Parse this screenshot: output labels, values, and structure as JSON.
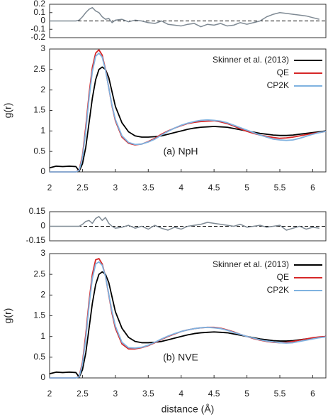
{
  "chart_data": [
    {
      "type": "line",
      "x": [
        2,
        2.1,
        2.2,
        2.3,
        2.4,
        2.45,
        2.5,
        2.55,
        2.6,
        2.65,
        2.7,
        2.75,
        2.8,
        2.85,
        2.9,
        2.95,
        3.0,
        3.1,
        3.2,
        3.3,
        3.4,
        3.5,
        3.6,
        3.7,
        3.8,
        3.9,
        4.0,
        4.1,
        4.2,
        4.3,
        4.4,
        4.5,
        4.6,
        4.7,
        4.8,
        4.9,
        5.0,
        5.1,
        5.2,
        5.3,
        5.4,
        5.5,
        5.6,
        5.7,
        5.8,
        5.9,
        6.0,
        6.1,
        6.2
      ],
      "series": [
        {
          "color": "#7f8a94",
          "values": [
            0,
            0,
            0,
            0,
            0,
            0.01,
            0.05,
            0.1,
            0.14,
            0.16,
            0.12,
            0.1,
            0.05,
            0.02,
            0.03,
            -0.02,
            0.01,
            0.02,
            -0.01,
            0.01,
            0.0,
            -0.02,
            -0.03,
            0.0,
            -0.04,
            -0.05,
            -0.06,
            -0.04,
            -0.03,
            -0.07,
            -0.04,
            -0.05,
            -0.03,
            -0.06,
            -0.05,
            -0.02,
            -0.04,
            -0.02,
            0.0,
            0.05,
            0.08,
            0.1,
            0.09,
            0.08,
            0.07,
            0.06,
            0.04,
            0.02,
            null
          ]
        }
      ],
      "xlim": [
        2,
        6.2
      ],
      "ylim": [
        -0.2,
        0.2
      ],
      "yticks": [
        0.2,
        0.1,
        0,
        -0.1,
        -0.2
      ],
      "reference_line": 0
    },
    {
      "type": "line",
      "x": [
        2,
        2.1,
        2.2,
        2.3,
        2.4,
        2.45,
        2.5,
        2.55,
        2.6,
        2.65,
        2.7,
        2.75,
        2.8,
        2.85,
        2.9,
        2.95,
        3.0,
        3.1,
        3.2,
        3.3,
        3.4,
        3.5,
        3.6,
        3.7,
        3.8,
        3.9,
        4.0,
        4.1,
        4.2,
        4.3,
        4.4,
        4.5,
        4.6,
        4.7,
        4.8,
        4.9,
        5.0,
        5.1,
        5.2,
        5.3,
        5.4,
        5.5,
        5.6,
        5.7,
        5.8,
        5.9,
        6.0,
        6.1,
        6.2
      ],
      "series": [
        {
          "name": "Skinner et al. (2013)",
          "color": "#000000",
          "values": [
            0.1,
            0.14,
            0.13,
            0.14,
            0.13,
            0.02,
            0.2,
            0.6,
            1.2,
            1.8,
            2.25,
            2.5,
            2.56,
            2.5,
            2.3,
            1.95,
            1.6,
            1.2,
            0.98,
            0.88,
            0.85,
            0.85,
            0.86,
            0.88,
            0.92,
            0.96,
            1.0,
            1.04,
            1.07,
            1.09,
            1.1,
            1.11,
            1.1,
            1.09,
            1.06,
            1.03,
            1.0,
            0.97,
            0.94,
            0.92,
            0.9,
            0.89,
            0.89,
            0.9,
            0.92,
            0.94,
            0.96,
            0.98,
            1.0
          ]
        },
        {
          "name": "QE",
          "color": "#d62728",
          "values": [
            0,
            0,
            0,
            0,
            0,
            0.05,
            0.4,
            1.1,
            1.9,
            2.55,
            2.9,
            2.98,
            2.85,
            2.5,
            2.05,
            1.6,
            1.25,
            0.85,
            0.7,
            0.66,
            0.68,
            0.74,
            0.82,
            0.92,
            1.0,
            1.07,
            1.13,
            1.18,
            1.21,
            1.23,
            1.24,
            1.25,
            1.22,
            1.18,
            1.12,
            1.05,
            0.99,
            0.94,
            0.9,
            0.87,
            0.84,
            0.82,
            0.83,
            0.85,
            0.88,
            0.91,
            0.94,
            0.96,
            0.99
          ]
        },
        {
          "name": "CP2K",
          "color": "#7fb2e0",
          "values": [
            0,
            0,
            0,
            0,
            0,
            0.04,
            0.35,
            1.0,
            1.8,
            2.45,
            2.82,
            2.9,
            2.8,
            2.48,
            2.05,
            1.62,
            1.28,
            0.88,
            0.72,
            0.67,
            0.68,
            0.73,
            0.8,
            0.9,
            0.99,
            1.07,
            1.14,
            1.19,
            1.23,
            1.26,
            1.27,
            1.26,
            1.24,
            1.2,
            1.14,
            1.08,
            1.02,
            0.96,
            0.9,
            0.85,
            0.8,
            0.78,
            0.77,
            0.78,
            0.82,
            0.87,
            0.92,
            0.96,
            0.99
          ]
        }
      ],
      "xlim": [
        2,
        6.2
      ],
      "xticks": [
        2,
        2.5,
        3,
        3.5,
        4,
        4.5,
        5,
        5.5,
        6
      ],
      "ylim": [
        0,
        3
      ],
      "yticks": [
        0,
        0.5,
        1,
        1.5,
        2,
        2.5,
        3
      ],
      "ylabel": "g(r)",
      "annotation": "(a) NpH",
      "legend": "upper right"
    },
    {
      "type": "line",
      "x": [
        2,
        2.1,
        2.2,
        2.3,
        2.4,
        2.45,
        2.5,
        2.55,
        2.6,
        2.65,
        2.7,
        2.75,
        2.8,
        2.85,
        2.9,
        2.95,
        3.0,
        3.1,
        3.2,
        3.3,
        3.4,
        3.5,
        3.6,
        3.7,
        3.8,
        3.9,
        4.0,
        4.1,
        4.2,
        4.3,
        4.4,
        4.5,
        4.6,
        4.7,
        4.8,
        4.9,
        5.0,
        5.1,
        5.2,
        5.3,
        5.4,
        5.5,
        5.6,
        5.7,
        5.8,
        5.9,
        6.0,
        6.1,
        6.2
      ],
      "series": [
        {
          "color": "#7f8a94",
          "values": [
            0,
            0,
            0,
            0,
            0,
            0.0,
            0.02,
            0.05,
            0.06,
            0.03,
            0.08,
            0.1,
            0.06,
            0.09,
            0.03,
            0.0,
            -0.02,
            -0.01,
            0.01,
            -0.02,
            0.0,
            -0.03,
            0.01,
            -0.02,
            -0.04,
            -0.01,
            -0.03,
            0.0,
            0.01,
            0.02,
            0.04,
            0.03,
            0.02,
            0.01,
            0.0,
            0.02,
            -0.01,
            0.0,
            0.01,
            -0.01,
            0.0,
            0.01,
            -0.04,
            -0.02,
            0.0,
            -0.03,
            -0.01,
            -0.02,
            null
          ]
        }
      ],
      "xlim": [
        2,
        6.2
      ],
      "ylim": [
        -0.15,
        0.15
      ],
      "yticks": [
        0.15,
        0,
        -0.15
      ],
      "reference_line": 0
    },
    {
      "type": "line",
      "x": [
        2,
        2.1,
        2.2,
        2.3,
        2.4,
        2.45,
        2.5,
        2.55,
        2.6,
        2.65,
        2.7,
        2.75,
        2.8,
        2.85,
        2.9,
        2.95,
        3.0,
        3.1,
        3.2,
        3.3,
        3.4,
        3.5,
        3.6,
        3.7,
        3.8,
        3.9,
        4.0,
        4.1,
        4.2,
        4.3,
        4.4,
        4.5,
        4.6,
        4.7,
        4.8,
        4.9,
        5.0,
        5.1,
        5.2,
        5.3,
        5.4,
        5.5,
        5.6,
        5.7,
        5.8,
        5.9,
        6.0,
        6.1,
        6.2
      ],
      "series": [
        {
          "name": "Skinner et al. (2013)",
          "color": "#000000",
          "values": [
            0.1,
            0.14,
            0.13,
            0.14,
            0.13,
            0.02,
            0.2,
            0.6,
            1.2,
            1.8,
            2.25,
            2.5,
            2.56,
            2.5,
            2.3,
            1.95,
            1.6,
            1.2,
            0.98,
            0.88,
            0.85,
            0.85,
            0.86,
            0.88,
            0.92,
            0.96,
            1.0,
            1.04,
            1.07,
            1.09,
            1.1,
            1.11,
            1.1,
            1.09,
            1.06,
            1.03,
            1.0,
            0.97,
            0.94,
            0.92,
            0.9,
            0.89,
            0.89,
            0.9,
            0.92,
            0.94,
            0.96,
            0.98,
            1.0
          ]
        },
        {
          "name": "QE",
          "color": "#d62728",
          "values": [
            0,
            0,
            0,
            0,
            0,
            0.04,
            0.38,
            1.05,
            1.85,
            2.5,
            2.85,
            2.88,
            2.75,
            2.45,
            2.0,
            1.55,
            1.2,
            0.82,
            0.7,
            0.7,
            0.73,
            0.78,
            0.85,
            0.93,
            1.0,
            1.06,
            1.12,
            1.16,
            1.19,
            1.21,
            1.22,
            1.22,
            1.2,
            1.16,
            1.11,
            1.05,
            1.0,
            0.95,
            0.91,
            0.88,
            0.86,
            0.85,
            0.86,
            0.88,
            0.91,
            0.94,
            0.97,
            0.99,
            1.0
          ]
        },
        {
          "name": "CP2K",
          "color": "#7fb2e0",
          "values": [
            0,
            0,
            0,
            0,
            0,
            0.03,
            0.33,
            0.95,
            1.75,
            2.4,
            2.75,
            2.8,
            2.72,
            2.45,
            2.02,
            1.6,
            1.25,
            0.86,
            0.73,
            0.72,
            0.74,
            0.79,
            0.86,
            0.94,
            1.01,
            1.07,
            1.12,
            1.16,
            1.19,
            1.21,
            1.22,
            1.21,
            1.19,
            1.15,
            1.1,
            1.05,
            1.0,
            0.96,
            0.92,
            0.89,
            0.87,
            0.85,
            0.84,
            0.85,
            0.88,
            0.91,
            0.94,
            0.97,
            0.99
          ]
        }
      ],
      "xlim": [
        2,
        6.2
      ],
      "xticks": [
        2,
        2.5,
        3,
        3.5,
        4,
        4.5,
        5,
        5.5,
        6
      ],
      "ylim": [
        0,
        3
      ],
      "yticks": [
        0,
        0.5,
        1,
        1.5,
        2,
        2.5,
        3
      ],
      "ylabel": "g(r)",
      "xlabel": "distance (Å)",
      "annotation": "(b) NVE",
      "legend": "upper right"
    }
  ]
}
